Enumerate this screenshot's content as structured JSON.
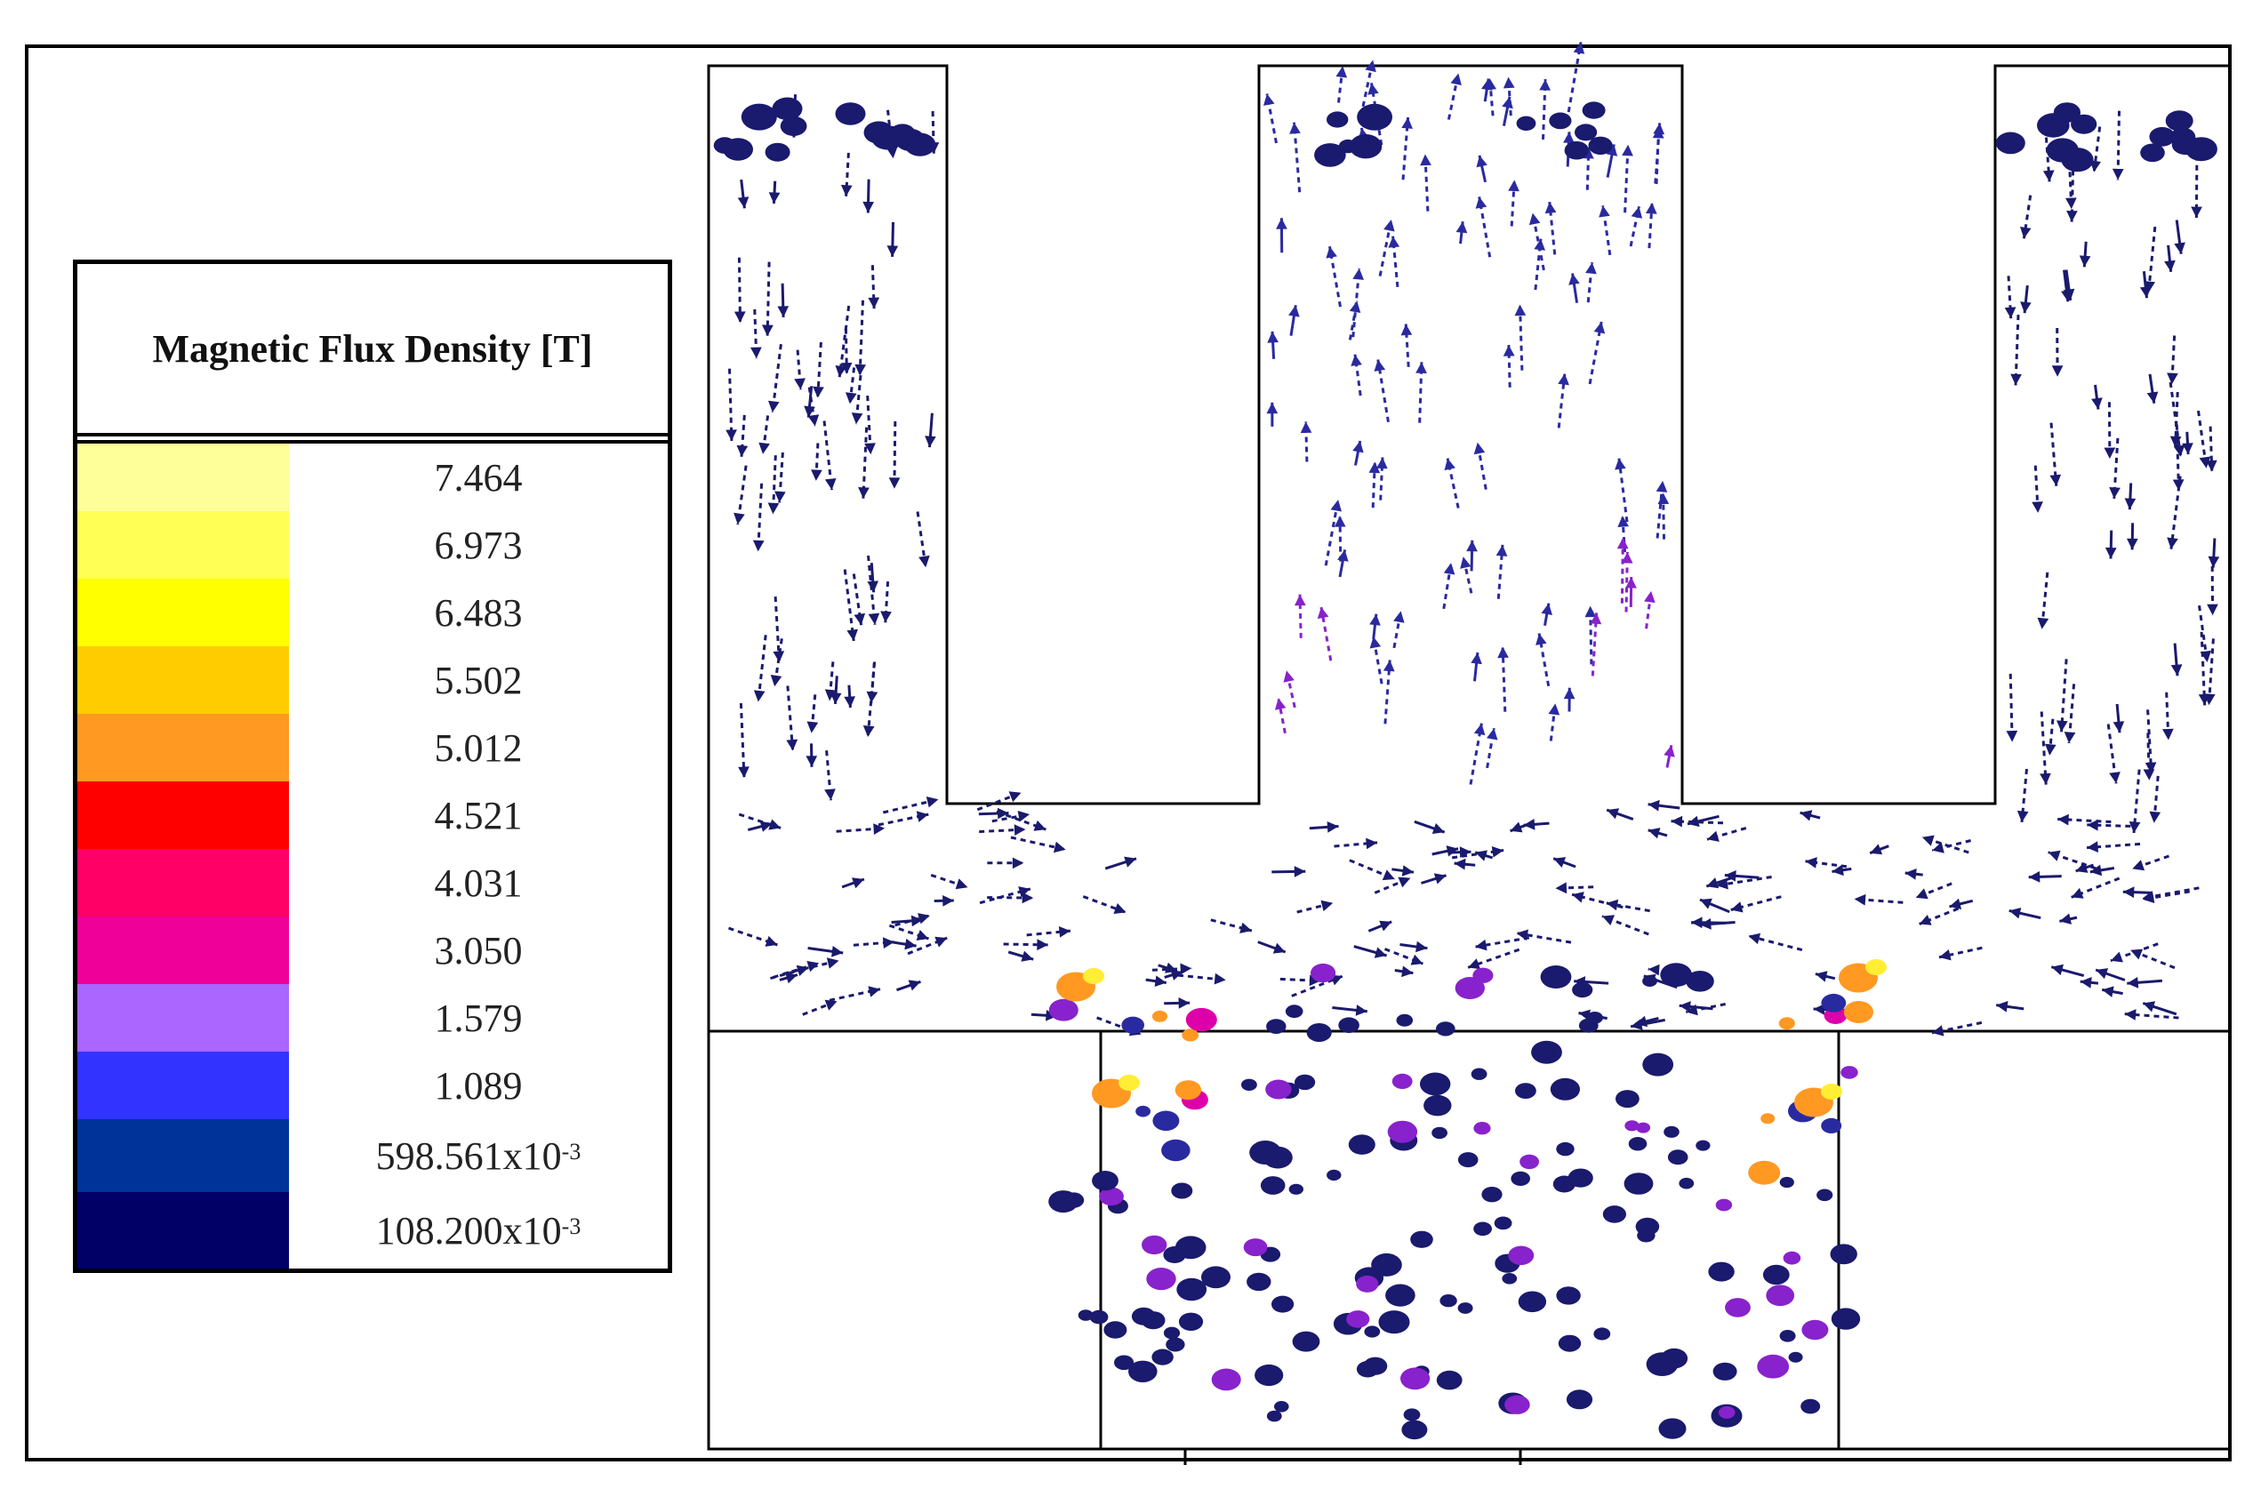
{
  "legend": {
    "title": "Magnetic Flux Density [T]",
    "entries": [
      {
        "label": "7.464",
        "color": "#ffff99"
      },
      {
        "label": "6.973",
        "color": "#ffff55"
      },
      {
        "label": "6.483",
        "color": "#ffff00"
      },
      {
        "label": "5.502",
        "color": "#ffcc00"
      },
      {
        "label": "5.012",
        "color": "#ff9922"
      },
      {
        "label": "4.521",
        "color": "#ff0000"
      },
      {
        "label": "4.031",
        "color": "#ff0066"
      },
      {
        "label": "3.050",
        "color": "#ee0099"
      },
      {
        "label": "1.579",
        "color": "#aa66ff"
      },
      {
        "label": "1.089",
        "color": "#3333ff"
      },
      {
        "label": "598.561x10",
        "exp": "-3",
        "color": "#003399"
      },
      {
        "label": "108.200x10",
        "exp": "-3",
        "color": "#000066"
      }
    ]
  },
  "colors": {
    "low": "#1a1a6e",
    "mid_blue": "#2a2aa0",
    "purple": "#8822cc",
    "magenta": "#dd00aa",
    "orange": "#ff9922",
    "yellow": "#ffee33",
    "outline": "#000000"
  }
}
